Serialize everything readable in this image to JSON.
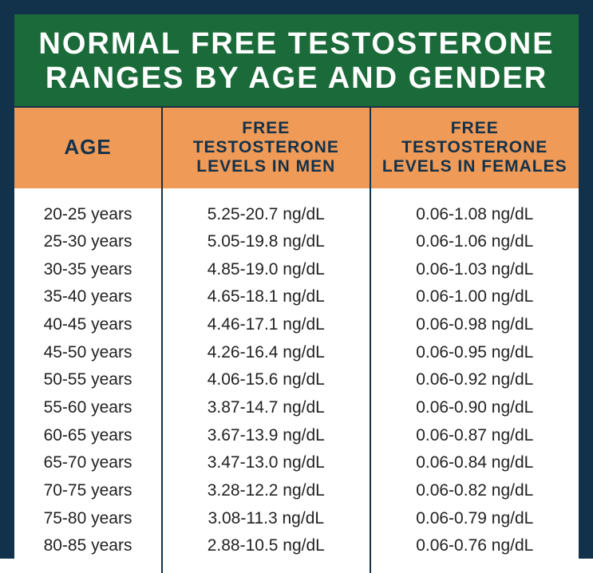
{
  "title": "NORMAL FREE TESTOSTERONE RANGES BY AGE AND GENDER",
  "colors": {
    "frame": "#12314a",
    "title_bg": "#1b6b3a",
    "title_text": "#ffffff",
    "header_bg": "#ef9a56",
    "header_text": "#12314a",
    "body_bg": "#ffffff",
    "body_text": "#222222",
    "divider": "#12314a"
  },
  "table": {
    "type": "table",
    "columns": [
      {
        "key": "age",
        "label": "AGE",
        "width_fr": 1.0
      },
      {
        "key": "men",
        "label": "FREE TESTOSTERONE LEVELS IN MEN",
        "width_fr": 1.4
      },
      {
        "key": "females",
        "label": "FREE TESTOSTERONE LEVELS IN FEMALES",
        "width_fr": 1.4
      }
    ],
    "rows": [
      {
        "age": "20-25 years",
        "men": "5.25-20.7 ng/dL",
        "females": "0.06-1.08 ng/dL"
      },
      {
        "age": "25-30 years",
        "men": "5.05-19.8 ng/dL",
        "females": "0.06-1.06 ng/dL"
      },
      {
        "age": "30-35 years",
        "men": "4.85-19.0 ng/dL",
        "females": "0.06-1.03 ng/dL"
      },
      {
        "age": "35-40 years",
        "men": "4.65-18.1 ng/dL",
        "females": "0.06-1.00 ng/dL"
      },
      {
        "age": "40-45 years",
        "men": "4.46-17.1 ng/dL",
        "females": "0.06-0.98 ng/dL"
      },
      {
        "age": "45-50 years",
        "men": "4.26-16.4 ng/dL",
        "females": "0.06-0.95 ng/dL"
      },
      {
        "age": "50-55 years",
        "men": "4.06-15.6 ng/dL",
        "females": "0.06-0.92 ng/dL"
      },
      {
        "age": "55-60 years",
        "men": "3.87-14.7 ng/dL",
        "females": "0.06-0.90 ng/dL"
      },
      {
        "age": "60-65 years",
        "men": "3.67-13.9 ng/dL",
        "females": "0.06-0.87 ng/dL"
      },
      {
        "age": "65-70 years",
        "men": "3.47-13.0 ng/dL",
        "females": "0.06-0.84 ng/dL"
      },
      {
        "age": "70-75 years",
        "men": "3.28-12.2 ng/dL",
        "females": "0.06-0.82 ng/dL"
      },
      {
        "age": "75-80 years",
        "men": "3.08-11.3 ng/dL",
        "females": "0.06-0.79 ng/dL"
      },
      {
        "age": "80-85 years",
        "men": "2.88-10.5 ng/dL",
        "females": "0.06-0.76 ng/dL"
      }
    ],
    "header_fontsize": 21,
    "body_fontsize": 21,
    "row_line_height": 1.65
  }
}
